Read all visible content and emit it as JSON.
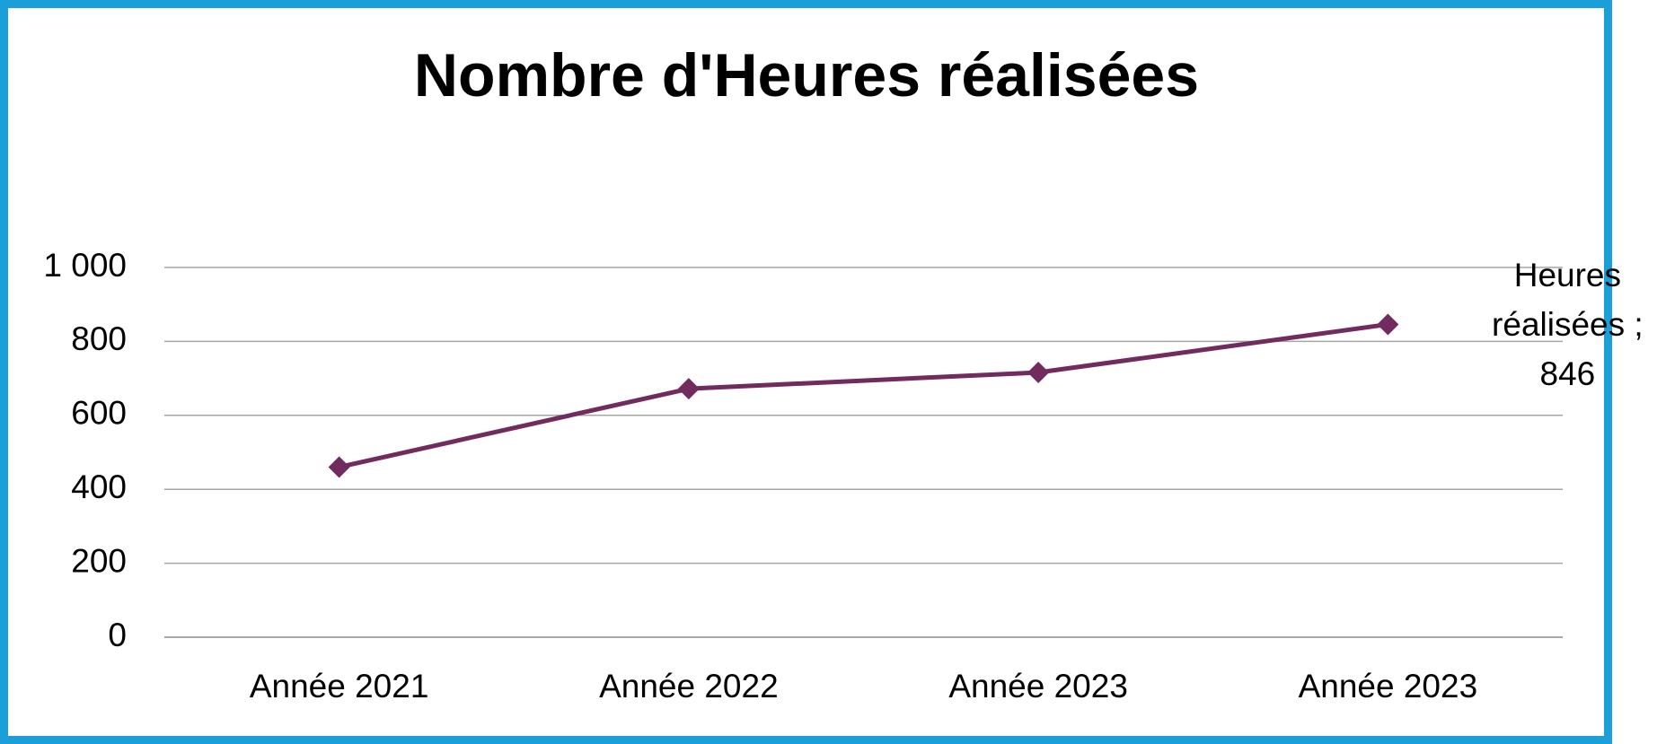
{
  "chart_data": {
    "type": "line",
    "title": "Nombre d'Heures réalisées",
    "categories": [
      "Année 2021",
      "Année 2022",
      "Année 2023",
      "Année 2023"
    ],
    "values": [
      460,
      672,
      716,
      846
    ],
    "value_labels": [
      null,
      null,
      null,
      "Heures réalisées ; 846"
    ],
    "color": "#722b5f",
    "ylim": [
      0,
      1000
    ],
    "yticks": [
      0,
      200,
      400,
      600,
      800,
      {
        "value": 1000,
        "label": "1 000"
      }
    ],
    "grid": true
  }
}
